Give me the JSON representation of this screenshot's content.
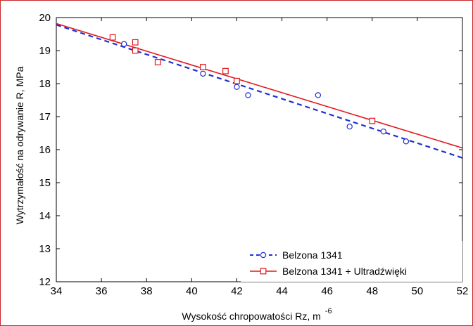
{
  "chart_data": {
    "type": "scatter",
    "xlabel": "Wysokość chropowatości Rz, m",
    "xlabel_superscript": "-6",
    "ylabel": "Wytrzymałość na odrywanie R, MPa",
    "xlim": [
      34,
      52
    ],
    "ylim": [
      12,
      20
    ],
    "x_ticks": [
      34,
      36,
      38,
      40,
      42,
      44,
      46,
      48,
      50,
      52
    ],
    "y_ticks": [
      12,
      13,
      14,
      15,
      16,
      17,
      18,
      19,
      20
    ],
    "grid": false,
    "legend_position": "bottom-right",
    "series": [
      {
        "name": "Belzona 1341",
        "marker": "circle",
        "line_style": "dashed",
        "color": "#1f2fd0",
        "points": [
          {
            "x": 37.0,
            "y": 19.2
          },
          {
            "x": 40.5,
            "y": 18.3
          },
          {
            "x": 42.0,
            "y": 17.9
          },
          {
            "x": 42.5,
            "y": 17.65
          },
          {
            "x": 45.6,
            "y": 17.65
          },
          {
            "x": 47.0,
            "y": 16.7
          },
          {
            "x": 48.5,
            "y": 16.55
          },
          {
            "x": 49.5,
            "y": 16.25
          }
        ],
        "fit": [
          {
            "x": 34,
            "y": 19.78
          },
          {
            "x": 52,
            "y": 15.75
          }
        ]
      },
      {
        "name": "Belzona 1341 + Ultradźwięki",
        "marker": "square",
        "line_style": "solid",
        "color": "#e0191f",
        "points": [
          {
            "x": 36.5,
            "y": 19.4
          },
          {
            "x": 37.5,
            "y": 19.25
          },
          {
            "x": 37.5,
            "y": 19.0
          },
          {
            "x": 38.5,
            "y": 18.65
          },
          {
            "x": 40.5,
            "y": 18.5
          },
          {
            "x": 41.5,
            "y": 18.38
          },
          {
            "x": 42.0,
            "y": 18.08
          },
          {
            "x": 48.0,
            "y": 16.87
          }
        ],
        "fit": [
          {
            "x": 34,
            "y": 19.82
          },
          {
            "x": 52,
            "y": 16.05
          }
        ]
      }
    ]
  }
}
